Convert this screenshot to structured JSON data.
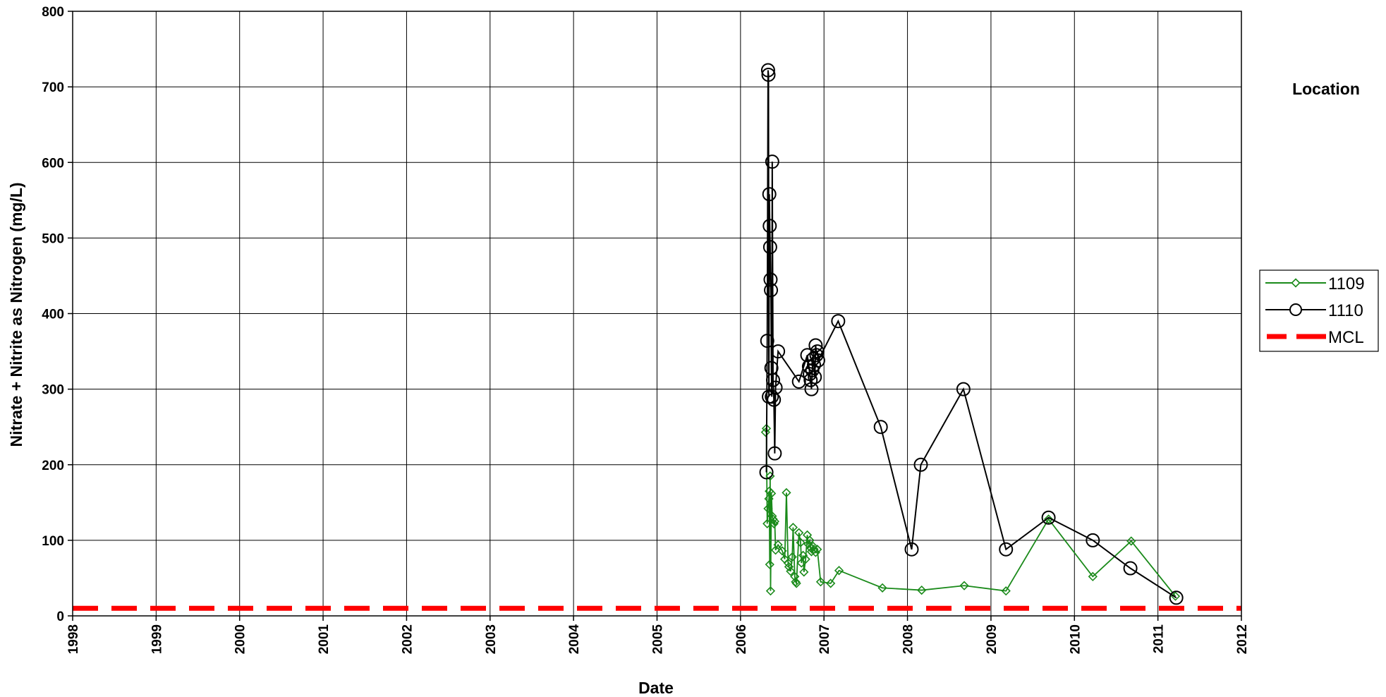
{
  "chart_data": {
    "type": "line",
    "title": "",
    "xlabel": "Date",
    "ylabel": "Nitrate + Nitrite as Nitrogen (mg/L)",
    "xlim": [
      1998,
      2012
    ],
    "ylim": [
      0,
      800
    ],
    "x_ticks": [
      "1998",
      "1999",
      "2000",
      "2001",
      "2002",
      "2003",
      "2004",
      "2005",
      "2006",
      "2007",
      "2008",
      "2009",
      "2010",
      "2011",
      "2012"
    ],
    "y_ticks": [
      "0",
      "100",
      "200",
      "300",
      "400",
      "500",
      "600",
      "700",
      "800"
    ],
    "grid": true,
    "legend_title": "Location",
    "legend_position": "right",
    "series": [
      {
        "name": "1109",
        "color": "#1a8a1a",
        "marker": "diamond",
        "x": [
          2006.3,
          2006.31,
          2006.32,
          2006.33,
          2006.34,
          2006.345,
          2006.35,
          2006.355,
          2006.36,
          2006.37,
          2006.38,
          2006.39,
          2006.4,
          2006.41,
          2006.42,
          2006.45,
          2006.5,
          2006.53,
          2006.55,
          2006.57,
          2006.58,
          2006.6,
          2006.62,
          2006.63,
          2006.65,
          2006.66,
          2006.67,
          2006.7,
          2006.72,
          2006.73,
          2006.75,
          2006.76,
          2006.78,
          2006.8,
          2006.81,
          2006.83,
          2006.84,
          2006.85,
          2006.87,
          2006.88,
          2006.9,
          2006.92,
          2006.96,
          2007.08,
          2007.18,
          2007.7,
          2008.17,
          2008.68,
          2009.18,
          2009.69,
          2010.22,
          2010.68,
          2011.21
        ],
        "y": [
          243,
          248,
          122,
          142,
          155,
          165,
          68,
          185,
          33,
          162,
          132,
          128,
          122,
          125,
          87,
          94,
          86,
          75,
          163,
          70,
          65,
          59,
          78,
          117,
          52,
          45,
          43,
          110,
          97,
          70,
          80,
          58,
          75,
          107,
          95,
          100,
          90,
          85,
          92,
          88,
          84,
          88,
          45,
          43,
          60,
          37,
          34,
          40,
          33,
          128,
          52,
          99,
          26
        ]
      },
      {
        "name": "1110",
        "color": "#000000",
        "marker": "circle",
        "x": [
          2006.31,
          2006.32,
          2006.33,
          2006.335,
          2006.34,
          2006.345,
          2006.35,
          2006.355,
          2006.36,
          2006.365,
          2006.37,
          2006.375,
          2006.38,
          2006.39,
          2006.4,
          2006.41,
          2006.42,
          2006.45,
          2006.7,
          2006.8,
          2006.82,
          2006.83,
          2006.84,
          2006.85,
          2006.86,
          2006.87,
          2006.88,
          2006.89,
          2006.9,
          2006.91,
          2006.92,
          2006.93,
          2007.17,
          2007.68,
          2008.05,
          2008.16,
          2008.67,
          2009.18,
          2009.69,
          2010.22,
          2010.67,
          2011.22
        ],
        "y": [
          190,
          364,
          722,
          716,
          290,
          558,
          516,
          488,
          445,
          431,
          328,
          290,
          601,
          312,
          286,
          215,
          302,
          350,
          310,
          345,
          330,
          320,
          312,
          300,
          325,
          340,
          332,
          316,
          358,
          345,
          350,
          338,
          390,
          250,
          88,
          200,
          300,
          88,
          130,
          100,
          63,
          24
        ]
      },
      {
        "name": "MCL",
        "color": "#ff0000",
        "style": "dashed",
        "x": [
          1998,
          2012
        ],
        "y": [
          10,
          10
        ]
      }
    ]
  }
}
